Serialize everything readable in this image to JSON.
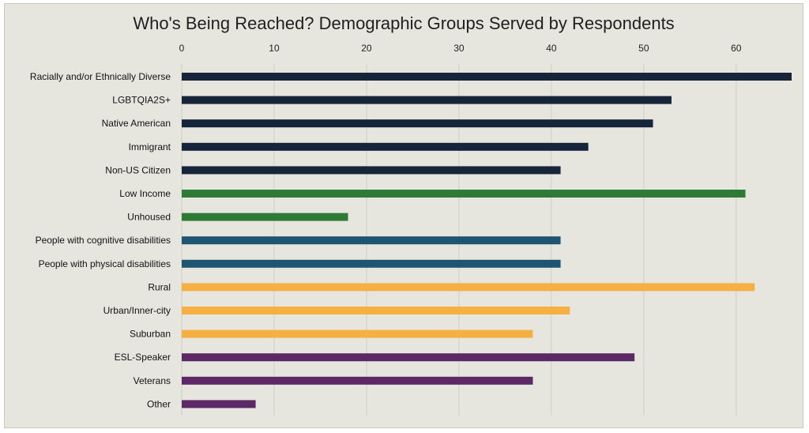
{
  "chart_data": {
    "type": "bar",
    "orientation": "horizontal",
    "title": "Who's Being Reached? Demographic Groups Served by Respondents",
    "xlabel": "",
    "ylabel": "",
    "xlim": [
      0,
      66
    ],
    "xticks": [
      0,
      10,
      20,
      30,
      40,
      50,
      60
    ],
    "grid": true,
    "legend": "none",
    "categories": [
      "Racially and/or Ethnically Diverse",
      "LGBTQIA2S+",
      "Native American",
      "Immigrant",
      "Non-US Citizen",
      "Low Income",
      "Unhoused",
      "People with cognitive disabilities",
      "People with physical disabilities",
      "Rural",
      "Urban/Inner-city",
      "Suburban",
      "ESL-Speaker",
      "Veterans",
      "Other"
    ],
    "values": [
      66,
      53,
      51,
      44,
      41,
      61,
      18,
      41,
      41,
      62,
      42,
      38,
      49,
      38,
      8
    ],
    "colors": [
      "#16253a",
      "#16253a",
      "#16253a",
      "#16253a",
      "#16253a",
      "#2e7a37",
      "#2e7a37",
      "#1e5570",
      "#1e5570",
      "#f5b041",
      "#f5b041",
      "#f5b041",
      "#5d2866",
      "#5d2866",
      "#5d2866"
    ],
    "gridline_color": "#cfcfc8"
  }
}
